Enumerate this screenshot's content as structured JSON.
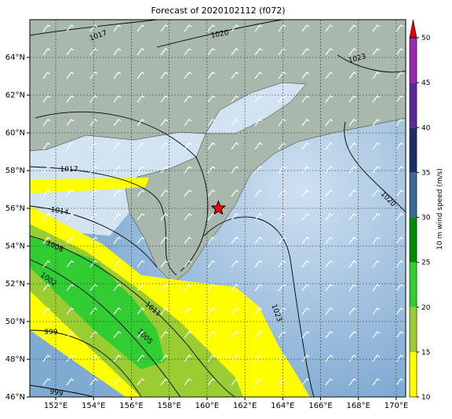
{
  "map": {
    "title": "Forecast of 2020102112 (f072)",
    "lonlim": [
      150.63,
      170.5
    ],
    "latlim": [
      46,
      66
    ],
    "grid": true,
    "xticks": [
      {
        "value": 152,
        "label": "152°E"
      },
      {
        "value": 154,
        "label": "154°E"
      },
      {
        "value": 156,
        "label": "156°E"
      },
      {
        "value": 158,
        "label": "158°E"
      },
      {
        "value": 160,
        "label": "160°E"
      },
      {
        "value": 162,
        "label": "162°E"
      },
      {
        "value": 164,
        "label": "164°E"
      },
      {
        "value": 166,
        "label": "166°E"
      },
      {
        "value": 168,
        "label": "168°E"
      },
      {
        "value": 170,
        "label": "170°E"
      }
    ],
    "yticks": [
      {
        "value": 46,
        "label": "46°N"
      },
      {
        "value": 48,
        "label": "48°N"
      },
      {
        "value": 50,
        "label": "50°N"
      },
      {
        "value": 52,
        "label": "52°N"
      },
      {
        "value": 54,
        "label": "54°N"
      },
      {
        "value": 56,
        "label": "56°N"
      },
      {
        "value": 58,
        "label": "58°N"
      },
      {
        "value": 60,
        "label": "60°N"
      },
      {
        "value": 62,
        "label": "62°N"
      },
      {
        "value": 64,
        "label": "64°N"
      }
    ],
    "marker": {
      "lon": 160.6,
      "lat": 56,
      "color": "#ff0000"
    },
    "contour_labels": [
      1017,
      1020,
      1023,
      1017,
      1014,
      1008,
      1002,
      1011,
      1005,
      1023,
      1020,
      999,
      999
    ],
    "colorbar": {
      "label": "10 m wind speed (m/s)",
      "lim": [
        10,
        50
      ],
      "ticks": [
        10,
        15,
        20,
        25,
        30,
        35,
        40,
        45,
        50
      ],
      "colors": [
        "#ffff00",
        "#9acd32",
        "#32cd32",
        "#008b00",
        "#3a6a9a",
        "#1c2f6a",
        "#5a2a9a",
        "#9a2ab0"
      ],
      "extend_color": "#e00000"
    }
  }
}
